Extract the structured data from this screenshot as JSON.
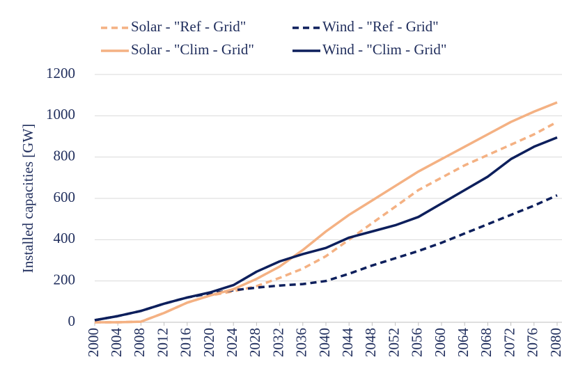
{
  "chart_data": {
    "type": "line",
    "y_label": "Installed capacities [GW]",
    "x": [
      2000,
      2004,
      2008,
      2012,
      2016,
      2020,
      2024,
      2028,
      2032,
      2036,
      2040,
      2044,
      2048,
      2052,
      2056,
      2060,
      2064,
      2068,
      2072,
      2076,
      2080
    ],
    "series": [
      {
        "name": "Solar - \"Ref - Grid\"",
        "color": "#f4b183",
        "style": "dashed",
        "values": [
          0,
          0,
          3,
          45,
          95,
          130,
          150,
          175,
          215,
          260,
          320,
          400,
          480,
          560,
          640,
          700,
          760,
          810,
          860,
          910,
          970
        ]
      },
      {
        "name": "Wind - \"Ref - Grid\"",
        "color": "#0d1f5c",
        "style": "dashed",
        "values": [
          10,
          30,
          55,
          90,
          120,
          140,
          155,
          168,
          178,
          185,
          200,
          235,
          275,
          310,
          345,
          385,
          430,
          475,
          520,
          565,
          615
        ]
      },
      {
        "name": "Solar - \"Clim - Grid\"",
        "color": "#f4b183",
        "style": "solid",
        "values": [
          0,
          0,
          3,
          45,
          95,
          130,
          160,
          210,
          270,
          350,
          440,
          520,
          590,
          660,
          730,
          790,
          850,
          910,
          970,
          1020,
          1065
        ]
      },
      {
        "name": "Wind - \"Clim - Grid\"",
        "color": "#0d1f5c",
        "style": "solid",
        "values": [
          10,
          30,
          55,
          90,
          120,
          145,
          180,
          245,
          295,
          330,
          360,
          410,
          440,
          470,
          510,
          575,
          640,
          705,
          790,
          850,
          895
        ]
      }
    ],
    "xlim": [
      2000,
      2080
    ],
    "xticks": [
      2000,
      2004,
      2008,
      2012,
      2016,
      2020,
      2024,
      2028,
      2032,
      2036,
      2040,
      2044,
      2048,
      2052,
      2056,
      2060,
      2064,
      2068,
      2072,
      2076,
      2080
    ],
    "ylim": [
      0,
      1200
    ],
    "yticks": [
      0,
      200,
      400,
      600,
      800,
      1000,
      1200
    ],
    "grid": true,
    "legend": "top"
  }
}
